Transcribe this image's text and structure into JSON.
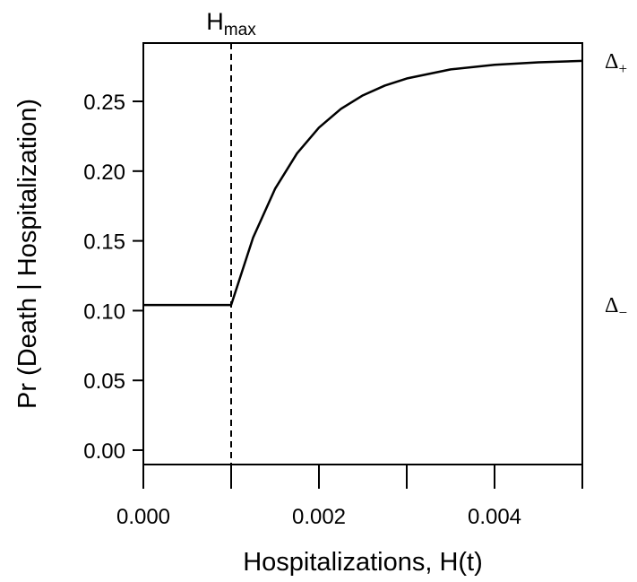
{
  "chart_data": {
    "type": "line",
    "x_label": "Hospitalizations, H(t)",
    "y_label": "Pr (Death | Hospitalization)",
    "x": [
      0,
      0.001,
      0.00125,
      0.0015,
      0.00175,
      0.002,
      0.00225,
      0.0025,
      0.00275,
      0.003,
      0.0035,
      0.004,
      0.0045,
      0.005
    ],
    "values": [
      0.104,
      0.104,
      0.1523,
      0.1873,
      0.2127,
      0.2312,
      0.2446,
      0.2543,
      0.2613,
      0.2664,
      0.2729,
      0.2762,
      0.278,
      0.279
    ],
    "color": "#000000",
    "xlim": [
      0,
      0.005
    ],
    "ylim": [
      -0.0103,
      0.2918
    ],
    "xticks": [
      {
        "value": 0,
        "label": "0.000"
      },
      {
        "value": 0.002,
        "label": "0.002"
      },
      {
        "value": 0.004,
        "label": "0.004"
      }
    ],
    "xminorticks": [
      0.001,
      0.003,
      0.005
    ],
    "yticks": [
      {
        "value": 0,
        "label": "0.00"
      },
      {
        "value": 0.05,
        "label": "0.05"
      },
      {
        "value": 0.1,
        "label": "0.10"
      },
      {
        "value": 0.15,
        "label": "0.15"
      },
      {
        "value": 0.2,
        "label": "0.20"
      },
      {
        "value": 0.25,
        "label": "0.25"
      }
    ],
    "vline": {
      "x": 0.001,
      "label": "H",
      "sub": "max"
    },
    "right_labels": [
      {
        "y": 0.279,
        "label": "Δ",
        "sub": "+"
      },
      {
        "y": 0.104,
        "label": "Δ",
        "sub": "−"
      }
    ]
  }
}
